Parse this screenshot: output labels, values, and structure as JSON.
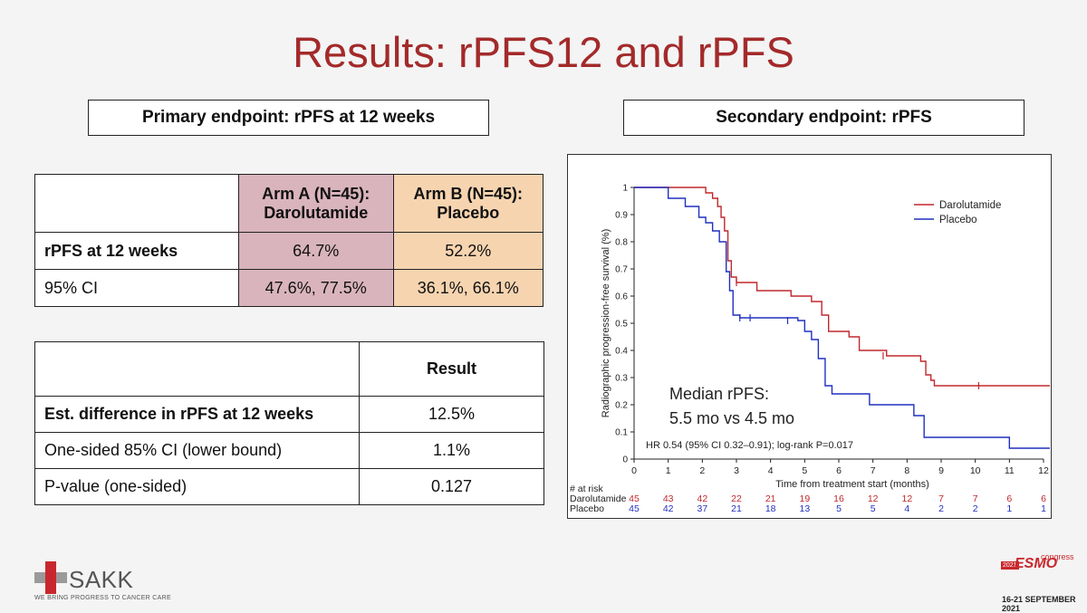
{
  "slide_title": "Results: rPFS12 and rPFS",
  "primary_label": "Primary endpoint: rPFS at 12 weeks",
  "secondary_label": "Secondary endpoint: rPFS",
  "table1": {
    "headers": [
      "",
      "Arm A (N=45):\nDarolutamide",
      "Arm B (N=45):\nPlacebo"
    ],
    "header_a_line1": "Arm A (N=45):",
    "header_a_line2": "Darolutamide",
    "header_b_line1": "Arm B (N=45):",
    "header_b_line2": "Placebo",
    "rows": [
      {
        "label": "rPFS at 12 weeks",
        "a": "64.7%",
        "b": "52.2%"
      },
      {
        "label": "95% CI",
        "a": "47.6%, 77.5%",
        "b": "36.1%, 66.1%"
      }
    ],
    "colors": {
      "arm_a": "#d9b4bd",
      "arm_b": "#f6d4b0"
    }
  },
  "table2": {
    "header": "Result",
    "rows": [
      {
        "label": "Est. difference in rPFS at 12 weeks",
        "value": "12.5%"
      },
      {
        "label": "One-sided 85% CI (lower bound)",
        "value": "1.1%"
      },
      {
        "label": "P-value (one-sided)",
        "value": "0.127"
      }
    ]
  },
  "chart_data": {
    "type": "line",
    "title": "",
    "xlabel": "Time from treatment start (months)",
    "ylabel": "Radiographic progression-free survival (%)",
    "xlim": [
      0,
      12
    ],
    "ylim": [
      0,
      1
    ],
    "xticks": [
      "0",
      "1",
      "2",
      "3",
      "4",
      "5",
      "6",
      "7",
      "8",
      "9",
      "10",
      "11",
      "12"
    ],
    "yticks": [
      "0",
      "0.1",
      "0.2",
      "0.3",
      "0.4",
      "0.5",
      "0.6",
      "0.7",
      "0.8",
      "0.9",
      "1"
    ],
    "legend_placement": "top-right",
    "series": [
      {
        "name": "Darolutamide",
        "color": "#c0282d",
        "x": [
          0,
          1.9,
          2.1,
          2.3,
          2.45,
          2.55,
          2.65,
          2.75,
          2.85,
          3.0,
          3.6,
          4.6,
          5.2,
          5.5,
          5.7,
          6.3,
          6.6,
          7.0,
          7.4,
          8.4,
          8.55,
          8.7,
          8.8,
          12.2
        ],
        "y": [
          1.0,
          1.0,
          0.98,
          0.96,
          0.93,
          0.89,
          0.84,
          0.73,
          0.67,
          0.65,
          0.62,
          0.6,
          0.58,
          0.53,
          0.47,
          0.45,
          0.4,
          0.4,
          0.38,
          0.36,
          0.31,
          0.29,
          0.27,
          0.27
        ],
        "censor_x": [
          3.0,
          7.3,
          10.1
        ],
        "censor_y": [
          0.65,
          0.38,
          0.27
        ]
      },
      {
        "name": "Placebo",
        "color": "#2030c0",
        "x": [
          0,
          0.9,
          1.0,
          1.5,
          1.9,
          2.1,
          2.3,
          2.5,
          2.7,
          2.8,
          2.9,
          3.1,
          4.8,
          5.0,
          5.2,
          5.4,
          5.6,
          5.8,
          6.9,
          7.6,
          8.2,
          8.5,
          10.9,
          11.0,
          12.2
        ],
        "y": [
          1.0,
          1.0,
          0.96,
          0.93,
          0.89,
          0.87,
          0.84,
          0.8,
          0.69,
          0.62,
          0.53,
          0.52,
          0.51,
          0.47,
          0.44,
          0.37,
          0.27,
          0.24,
          0.2,
          0.2,
          0.16,
          0.08,
          0.08,
          0.04,
          0.04
        ],
        "censor_x": [
          3.1,
          3.4,
          4.5
        ],
        "censor_y": [
          0.52,
          0.52,
          0.51
        ]
      }
    ],
    "annotation_median_line1": "Median rPFS:",
    "annotation_median_line2": "5.5 mo vs 4.5 mo",
    "annotation_hr": "HR 0.54 (95% CI 0.32–0.91); log-rank P=0.017",
    "at_risk_title": "# at risk",
    "at_risk": [
      {
        "name": "Darolutamide",
        "values": [
          "45",
          "43",
          "42",
          "22",
          "21",
          "19",
          "16",
          "12",
          "12",
          "7",
          "7",
          "6",
          "6"
        ],
        "color": "#c0282d"
      },
      {
        "name": "Placebo",
        "values": [
          "45",
          "42",
          "37",
          "21",
          "18",
          "13",
          "5",
          "5",
          "4",
          "2",
          "2",
          "1",
          "1"
        ],
        "color": "#2030c0"
      }
    ]
  },
  "footer": {
    "logo_name": "SAKK",
    "logo_tagline": "WE BRING PROGRESS TO CANCER CARE",
    "congress_year": "2021",
    "congress_name": "ESMO",
    "congress_word": "congress",
    "congress_dates": "16-21 SEPTEMBER 2021"
  }
}
